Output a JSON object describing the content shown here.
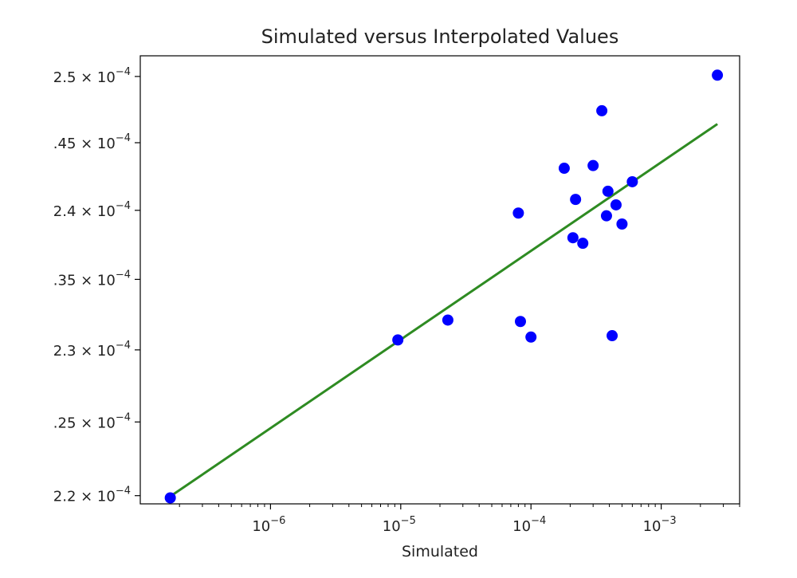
{
  "chart_data": {
    "type": "scatter",
    "title": "Simulated versus Interpolated Values",
    "xlabel": "Simulated",
    "ylabel": "",
    "x_scale": "log",
    "y_scale": "log",
    "xlim": [
      1e-07,
      0.004
    ],
    "ylim": [
      0.00021945,
      0.00025158
    ],
    "grid": false,
    "legend": "none",
    "x_ticks": [
      {
        "value": 1e-06,
        "base": "10",
        "exp": "−6"
      },
      {
        "value": 1e-05,
        "base": "10",
        "exp": "−5"
      },
      {
        "value": 0.0001,
        "base": "10",
        "exp": "−4"
      },
      {
        "value": 0.001,
        "base": "10",
        "exp": "−3"
      }
    ],
    "y_ticks": [
      {
        "value": 0.00022,
        "mant": "2.2 × 10",
        "exp": "−4"
      },
      {
        "value": 0.000225,
        "mant": ".25 × 10",
        "exp": "−4"
      },
      {
        "value": 0.00023,
        "mant": "2.3 × 10",
        "exp": "−4"
      },
      {
        "value": 0.000235,
        "mant": ".35 × 10",
        "exp": "−4"
      },
      {
        "value": 0.00024,
        "mant": "2.4 × 10",
        "exp": "−4"
      },
      {
        "value": 0.000245,
        "mant": ".45 × 10",
        "exp": "−4"
      },
      {
        "value": 0.00025,
        "mant": "2.5 × 10",
        "exp": "−4"
      }
    ],
    "series": [
      {
        "marker": "circle",
        "color": "#0000ff",
        "points": [
          {
            "x": 1.7e-07,
            "y": 0.00021985
          },
          {
            "x": 9.5e-06,
            "y": 0.0002307
          },
          {
            "x": 2.3e-05,
            "y": 0.0002321
          },
          {
            "x": 8e-05,
            "y": 0.0002398
          },
          {
            "x": 8.3e-05,
            "y": 0.000232
          },
          {
            "x": 0.0001,
            "y": 0.0002309
          },
          {
            "x": 0.00018,
            "y": 0.0002431
          },
          {
            "x": 0.00021,
            "y": 0.000238
          },
          {
            "x": 0.00022,
            "y": 0.0002408
          },
          {
            "x": 0.00025,
            "y": 0.0002376
          },
          {
            "x": 0.0003,
            "y": 0.0002433
          },
          {
            "x": 0.00035,
            "y": 0.0002474
          },
          {
            "x": 0.00038,
            "y": 0.0002396
          },
          {
            "x": 0.00039,
            "y": 0.0002414
          },
          {
            "x": 0.00042,
            "y": 0.000231
          },
          {
            "x": 0.00045,
            "y": 0.0002404
          },
          {
            "x": 0.0005,
            "y": 0.000239
          },
          {
            "x": 0.0006,
            "y": 0.0002421
          },
          {
            "x": 0.0027,
            "y": 0.0002501
          }
        ]
      },
      {
        "marker": "line",
        "color": "#2e8b22",
        "points": [
          {
            "x": 1.7e-07,
            "y": 0.00021995
          },
          {
            "x": 0.0027,
            "y": 0.0002464
          }
        ]
      }
    ]
  }
}
